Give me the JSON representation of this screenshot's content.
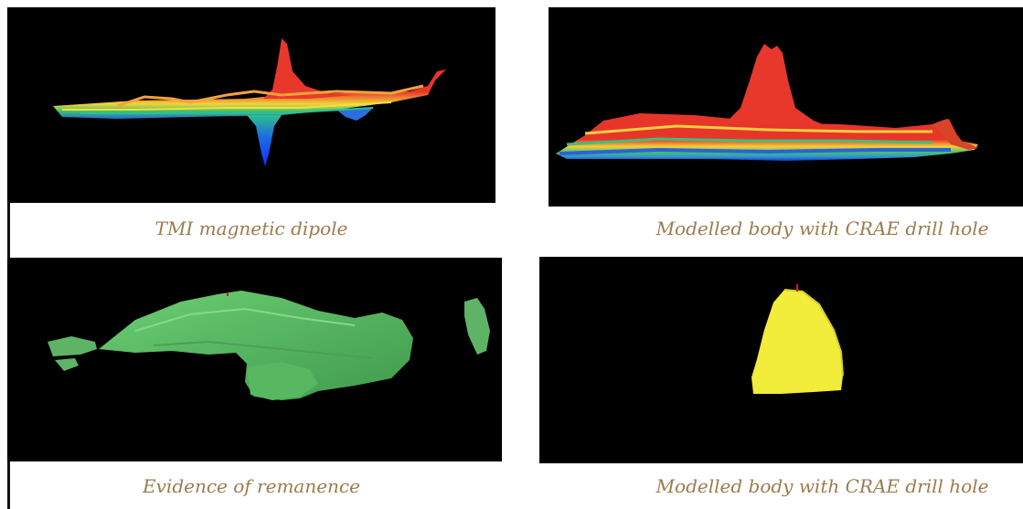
{
  "panels": [
    {
      "id": "tmi",
      "caption": "TMI magnetic dipole"
    },
    {
      "id": "modelled-top",
      "caption": "Modelled body with CRAE drill hole"
    },
    {
      "id": "remanence",
      "caption": "Evidence of remanence"
    },
    {
      "id": "modelled-bottom",
      "caption": "Modelled body with CRAE drill hole"
    }
  ],
  "colors": {
    "caption": "#9b7b4e",
    "background": "#000000",
    "green_body": "#5fb366",
    "yellow_body": "#f2ec3a",
    "drill_hole": "#d11b1b"
  }
}
